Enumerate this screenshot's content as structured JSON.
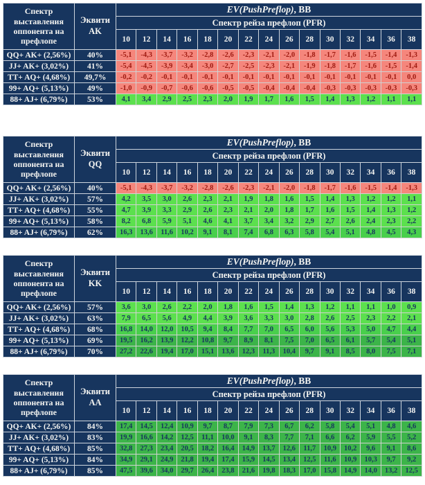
{
  "colors": {
    "navy": "#17355E",
    "header_text": "#F5F5F2",
    "red_bg": "#F5867C",
    "red_text": "#9E1A10",
    "green_bright_bg": "#5CE04E",
    "green_mid_bg": "#49CF4C",
    "green_dark_bg": "#3CB449",
    "green_text": "#17355E",
    "grid_gray": "#D2D2D2",
    "page_bg": "#FFFFFF"
  },
  "header": {
    "spectrum_title": "Спектр выставления оппонента на префлопе",
    "equity_prefix": "Эквити",
    "ev_title_italic": "EV(PushPreflop)",
    "ev_title_suffix": ", BB",
    "pfr_title": "Спектр рейза префлоп (PFR)"
  },
  "pfr_columns": [
    "10",
    "12",
    "14",
    "16",
    "18",
    "20",
    "22",
    "24",
    "26",
    "28",
    "30",
    "32",
    "34",
    "36",
    "38"
  ],
  "tables": [
    {
      "hand": "AK",
      "gap_after": "large",
      "rows": [
        {
          "label": "QQ+ AK+ (2,56%)",
          "equity": "40%",
          "tone": "red",
          "values": [
            "-5,1",
            "-4,3",
            "-3,7",
            "-3,2",
            "-2,8",
            "-2,6",
            "-2,3",
            "-2,1",
            "-2,0",
            "-1,8",
            "-1,7",
            "-1,6",
            "-1,5",
            "-1,4",
            "-1,3"
          ]
        },
        {
          "label": "JJ+ AK+ (3,02%)",
          "equity": "41%",
          "tone": "red",
          "values": [
            "-5,4",
            "-4,5",
            "-3,9",
            "-3,4",
            "-3,0",
            "-2,7",
            "-2,5",
            "-2,3",
            "-2,1",
            "-1,9",
            "-1,8",
            "-1,7",
            "-1,6",
            "-1,5",
            "-1,4"
          ]
        },
        {
          "label": "TT+ AQ+ (4,68%)",
          "equity": "49,7%",
          "tone": "red",
          "values": [
            "-0,2",
            "-0,2",
            "-0,1",
            "-0,1",
            "-0,1",
            "-0,1",
            "-0,1",
            "-0,1",
            "-0,1",
            "-0,1",
            "-0,1",
            "-0,1",
            "-0,1",
            "-0,1",
            "0,0"
          ]
        },
        {
          "label": "99+ AQ+ (5,13%)",
          "equity": "49%",
          "tone": "red",
          "values": [
            "-1,0",
            "-0,9",
            "-0,7",
            "-0,6",
            "-0,6",
            "-0,5",
            "-0,5",
            "-0,4",
            "-0,4",
            "-0,4",
            "-0,3",
            "-0,3",
            "-0,3",
            "-0,3",
            "-0,3"
          ]
        },
        {
          "label": "88+ AJ+ (6,79%)",
          "equity": "53%",
          "tone": "green-bright",
          "values": [
            "4,1",
            "3,4",
            "2,9",
            "2,5",
            "2,3",
            "2,0",
            "1,9",
            "1,7",
            "1,6",
            "1,5",
            "1,4",
            "1,3",
            "1,2",
            "1,1",
            "1,1"
          ]
        }
      ]
    },
    {
      "hand": "QQ",
      "gap_after": "small",
      "rows": [
        {
          "label": "QQ+ AK+ (2,56%)",
          "equity": "40%",
          "tone": "red",
          "values": [
            "-5,1",
            "-4,3",
            "-3,7",
            "-3,2",
            "-2,8",
            "-2,6",
            "-2,3",
            "-2,1",
            "-2,0",
            "-1,8",
            "-1,7",
            "-1,6",
            "-1,5",
            "-1,4",
            "-1,3"
          ]
        },
        {
          "label": "JJ+ AK+ (3,02%)",
          "equity": "57%",
          "tone": "green-bright",
          "values": [
            "4,2",
            "3,5",
            "3,0",
            "2,6",
            "2,3",
            "2,1",
            "1,9",
            "1,8",
            "1,6",
            "1,5",
            "1,4",
            "1,3",
            "1,2",
            "1,2",
            "1,1"
          ]
        },
        {
          "label": "TT+ AQ+ (4,68%)",
          "equity": "55%",
          "tone": "green-bright",
          "values": [
            "4,7",
            "3,9",
            "3,3",
            "2,9",
            "2,6",
            "2,3",
            "2,1",
            "2,0",
            "1,8",
            "1,7",
            "1,6",
            "1,5",
            "1,4",
            "1,3",
            "1,2"
          ]
        },
        {
          "label": "99+ AQ+ (5,13%)",
          "equity": "58%",
          "tone": "green-bright",
          "values": [
            "8,2",
            "6,8",
            "5,9",
            "5,1",
            "4,6",
            "4,1",
            "3,7",
            "3,4",
            "3,2",
            "2,9",
            "2,7",
            "2,6",
            "2,4",
            "2,3",
            "2,2"
          ]
        },
        {
          "label": "88+ AJ+ (6,79%)",
          "equity": "62%",
          "tone": "green-mid",
          "values": [
            "16,3",
            "13,6",
            "11,6",
            "10,2",
            "9,1",
            "8,1",
            "7,4",
            "6,8",
            "6,3",
            "5,8",
            "5,4",
            "5,1",
            "4,8",
            "4,5",
            "4,3"
          ]
        }
      ]
    },
    {
      "hand": "KK",
      "gap_after": "small",
      "rows": [
        {
          "label": "QQ+ AK+ (2,56%)",
          "equity": "57%",
          "tone": "green-bright",
          "values": [
            "3,6",
            "3,0",
            "2,6",
            "2,2",
            "2,0",
            "1,8",
            "1,6",
            "1,5",
            "1,4",
            "1,3",
            "1,2",
            "1,1",
            "1,1",
            "1,0",
            "0,9"
          ]
        },
        {
          "label": "JJ+ AK+ (3,02%)",
          "equity": "63%",
          "tone": "green-bright",
          "values": [
            "7,9",
            "6,5",
            "5,6",
            "4,9",
            "4,4",
            "3,9",
            "3,6",
            "3,3",
            "3,0",
            "2,8",
            "2,6",
            "2,5",
            "2,3",
            "2,2",
            "2,1"
          ]
        },
        {
          "label": "TT+ AQ+ (4,68%)",
          "equity": "68%",
          "tone": "green-mid",
          "values": [
            "16,8",
            "14,0",
            "12,0",
            "10,5",
            "9,4",
            "8,4",
            "7,7",
            "7,0",
            "6,5",
            "6,0",
            "5,6",
            "5,3",
            "5,0",
            "4,7",
            "4,4"
          ]
        },
        {
          "label": "99+ AQ+ (5,13%)",
          "equity": "69%",
          "tone": "green-dark",
          "values": [
            "19,5",
            "16,2",
            "13,9",
            "12,2",
            "10,8",
            "9,7",
            "8,9",
            "8,1",
            "7,5",
            "7,0",
            "6,5",
            "6,1",
            "5,7",
            "5,4",
            "5,1"
          ]
        },
        {
          "label": "88+ AJ+ (6,79%)",
          "equity": "70%",
          "tone": "green-dark",
          "values": [
            "27,2",
            "22,6",
            "19,4",
            "17,0",
            "15,1",
            "13,6",
            "12,3",
            "11,3",
            "10,4",
            "9,7",
            "9,1",
            "8,5",
            "8,0",
            "7,5",
            "7,1"
          ]
        }
      ]
    },
    {
      "hand": "AA",
      "gap_after": "none",
      "rows": [
        {
          "label": "QQ+ AK+ (2,56%)",
          "equity": "84%",
          "tone": "green-dark",
          "values": [
            "17,4",
            "14,5",
            "12,4",
            "10,9",
            "9,7",
            "8,7",
            "7,9",
            "7,3",
            "6,7",
            "6,2",
            "5,8",
            "5,4",
            "5,1",
            "4,8",
            "4,6"
          ]
        },
        {
          "label": "JJ+ AK+ (3,02%)",
          "equity": "83%",
          "tone": "green-dark",
          "values": [
            "19,9",
            "16,6",
            "14,2",
            "12,5",
            "11,1",
            "10,0",
            "9,1",
            "8,3",
            "7,7",
            "7,1",
            "6,6",
            "6,2",
            "5,9",
            "5,5",
            "5,2"
          ]
        },
        {
          "label": "TT+ AQ+ (4,68%)",
          "equity": "85%",
          "tone": "green-dark",
          "values": [
            "32,8",
            "27,3",
            "23,4",
            "20,5",
            "18,2",
            "16,4",
            "14,9",
            "13,7",
            "12,6",
            "11,7",
            "10,9",
            "10,2",
            "9,6",
            "9,1",
            "8,6"
          ]
        },
        {
          "label": "99+ AQ+ (5,13%)",
          "equity": "84%",
          "tone": "green-dark",
          "values": [
            "34,9",
            "29,1",
            "24,9",
            "21,8",
            "19,4",
            "17,4",
            "15,9",
            "14,5",
            "13,4",
            "12,5",
            "11,6",
            "10,9",
            "10,3",
            "9,7",
            "9,2"
          ]
        },
        {
          "label": "88+ AJ+ (6,79%)",
          "equity": "85%",
          "tone": "green-dark",
          "values": [
            "47,5",
            "39,6",
            "34,0",
            "29,7",
            "26,4",
            "23,8",
            "21,6",
            "19,8",
            "18,3",
            "17,0",
            "15,8",
            "14,9",
            "14,0",
            "13,2",
            "12,5"
          ]
        }
      ]
    }
  ]
}
